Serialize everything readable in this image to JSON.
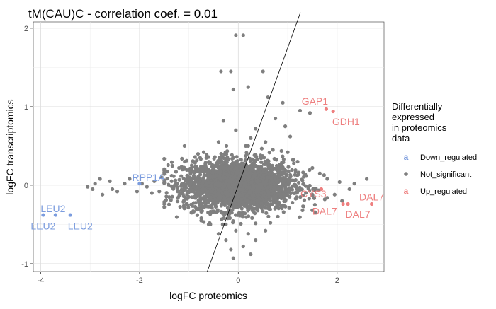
{
  "chart_data": {
    "type": "scatter",
    "title": "tM(CAU)C - correlation coef. = 0.01",
    "xlabel": "logFC proteomics",
    "ylabel": "logFC transcriptomics",
    "xlim": [
      -4.15,
      2.95
    ],
    "ylim": [
      -1.1,
      2.08
    ],
    "x_ticks": [
      -4,
      -2,
      0,
      2
    ],
    "y_ticks": [
      -1,
      0,
      1,
      2
    ],
    "x_tick_labels": [
      "-4",
      "-2",
      "0",
      "2"
    ],
    "y_tick_labels": [
      "-1",
      "0",
      "1",
      "2"
    ],
    "grid": true,
    "legend": {
      "title_lines": [
        "Differentially",
        "expressed",
        "in proteomics",
        "data"
      ],
      "placement": "right",
      "entries": [
        {
          "key": "Down_regulated",
          "label": "Down_regulated",
          "color": "#7b9cde",
          "glyph": "a"
        },
        {
          "key": "Not_significant",
          "label": "Not_significant",
          "color": "#7f7f7f",
          "glyph": "dot"
        },
        {
          "key": "Up_regulated",
          "label": "Up_regulated",
          "color": "#ee7f7f",
          "glyph": "a"
        }
      ]
    },
    "fit_line": {
      "slope": 1.75,
      "intercept": 0
    },
    "bulk_cloud": {
      "series": "Not_significant",
      "center": [
        0,
        0
      ],
      "spread": [
        0.55,
        0.16
      ],
      "count": 2600
    },
    "series": [
      {
        "name": "Not_significant",
        "color": "#7f7f7f",
        "points": [
          [
            -0.05,
            1.91
          ],
          [
            0.1,
            1.91
          ],
          [
            -0.35,
            1.45
          ],
          [
            -0.15,
            1.45
          ],
          [
            0.5,
            1.45
          ],
          [
            0.2,
            1.25
          ],
          [
            -0.1,
            1.22
          ],
          [
            0.6,
            1.12
          ],
          [
            0.9,
            1.05
          ],
          [
            1.25,
            0.95
          ],
          [
            1.45,
            0.92
          ],
          [
            0.75,
            0.85
          ],
          [
            0.95,
            0.75
          ],
          [
            -0.3,
            0.82
          ],
          [
            0.35,
            0.72
          ],
          [
            -0.05,
            0.7
          ],
          [
            0.25,
            0.6
          ],
          [
            1.05,
            0.62
          ],
          [
            0.55,
            0.55
          ],
          [
            -0.4,
            0.55
          ],
          [
            0.15,
            0.5
          ],
          [
            1.0,
            0.42
          ],
          [
            -0.7,
            0.42
          ],
          [
            0.7,
            0.45
          ],
          [
            -0.05,
            -0.58
          ],
          [
            0.2,
            -0.62
          ],
          [
            -0.25,
            -0.7
          ],
          [
            0.1,
            -0.78
          ],
          [
            -0.15,
            -0.82
          ],
          [
            -0.1,
            -0.93
          ],
          [
            0.25,
            -0.88
          ],
          [
            0.35,
            -0.7
          ],
          [
            -0.4,
            -0.62
          ],
          [
            0.55,
            -0.58
          ],
          [
            -0.6,
            -0.5
          ],
          [
            0.65,
            -0.48
          ],
          [
            -3.05,
            -0.02
          ],
          [
            -2.95,
            -0.05
          ],
          [
            -2.8,
            0.08
          ],
          [
            -2.6,
            0.05
          ],
          [
            -2.55,
            -0.05
          ],
          [
            -2.75,
            -0.12
          ],
          [
            -2.45,
            -0.08
          ],
          [
            -2.3,
            0.02
          ],
          [
            -2.2,
            0.08
          ],
          [
            -2.9,
            0.02
          ],
          [
            -1.85,
            -0.02
          ],
          [
            -1.7,
            0.05
          ],
          [
            -1.6,
            -0.08
          ],
          [
            -1.75,
            -0.1
          ],
          [
            -1.95,
            0.02
          ],
          [
            -2.05,
            -0.08
          ],
          [
            -1.55,
            0.1
          ],
          [
            -1.4,
            -0.15
          ],
          [
            -1.35,
            0.12
          ],
          [
            2.05,
            0.04
          ],
          [
            2.25,
            -0.05
          ],
          [
            2.6,
            0.08
          ],
          [
            2.35,
            0.02
          ],
          [
            1.8,
            0.08
          ],
          [
            1.95,
            -0.12
          ],
          [
            1.75,
            -0.18
          ],
          [
            1.65,
            0.15
          ],
          [
            2.1,
            -0.2
          ],
          [
            1.55,
            -0.25
          ],
          [
            1.5,
            0.22
          ],
          [
            -1.2,
            0.22
          ],
          [
            -1.1,
            -0.28
          ],
          [
            1.3,
            -0.32
          ],
          [
            -0.9,
            0.3
          ],
          [
            -0.95,
            -0.35
          ],
          [
            1.2,
            0.3
          ],
          [
            0.8,
            -0.4
          ],
          [
            -0.75,
            -0.42
          ],
          [
            0.45,
            0.38
          ]
        ]
      },
      {
        "name": "Down_regulated",
        "color": "#7b9cde",
        "points": [
          [
            -2.0,
            0.02
          ],
          [
            -3.95,
            -0.38
          ],
          [
            -3.7,
            -0.38
          ],
          [
            -3.4,
            -0.38
          ]
        ]
      },
      {
        "name": "Up_regulated",
        "color": "#ee7f7f",
        "points": [
          [
            1.78,
            0.97
          ],
          [
            1.92,
            0.94
          ],
          [
            1.68,
            -0.05
          ],
          [
            2.12,
            -0.24
          ],
          [
            2.22,
            -0.24
          ],
          [
            2.7,
            -0.24
          ]
        ]
      }
    ],
    "annotations": [
      {
        "text": "GAP1",
        "x": 1.55,
        "y": 1.07,
        "color": "#ee7f7f"
      },
      {
        "text": "GDH1",
        "x": 2.18,
        "y": 0.81,
        "color": "#ee7f7f"
      },
      {
        "text": "RPP1A",
        "x": -1.82,
        "y": 0.1,
        "color": "#7b9cde"
      },
      {
        "text": "CYS3",
        "x": 1.52,
        "y": -0.11,
        "color": "#ee7f7f"
      },
      {
        "text": "DAL7",
        "x": 2.7,
        "y": -0.15,
        "color": "#ee7f7f"
      },
      {
        "text": "DAL7",
        "x": 1.75,
        "y": -0.33,
        "color": "#ee7f7f"
      },
      {
        "text": "DAL7",
        "x": 2.42,
        "y": -0.37,
        "color": "#ee7f7f"
      },
      {
        "text": "LEU2",
        "x": -3.75,
        "y": -0.3,
        "color": "#7b9cde"
      },
      {
        "text": "LEU2",
        "x": -3.95,
        "y": -0.52,
        "color": "#7b9cde"
      },
      {
        "text": "LEU2",
        "x": -3.2,
        "y": -0.52,
        "color": "#7b9cde"
      }
    ]
  }
}
